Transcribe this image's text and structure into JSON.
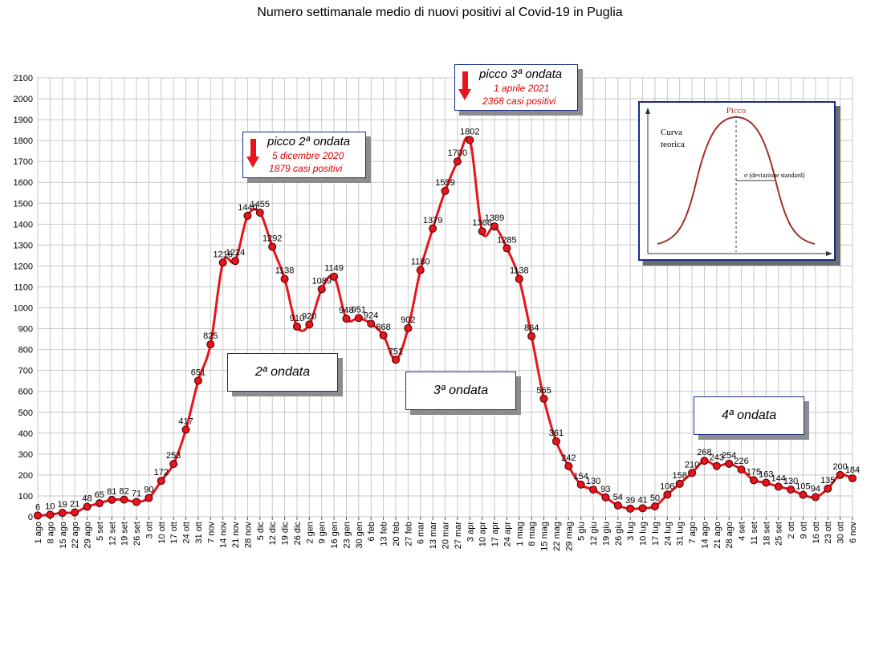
{
  "chart_data": {
    "type": "line",
    "title": "Numero settimanale medio di nuovi positivi al Covid-19 in Puglia",
    "ylim": [
      0,
      2100
    ],
    "yticks": [
      0,
      100,
      200,
      300,
      400,
      500,
      600,
      700,
      800,
      900,
      1000,
      1100,
      1200,
      1300,
      1400,
      1500,
      1600,
      1700,
      1800,
      1900,
      2000,
      2100
    ],
    "grid": true,
    "x": [
      "1 ago",
      "8 ago",
      "15 ago",
      "22 ago",
      "29 ago",
      "5 set",
      "12 set",
      "19 set",
      "26 set",
      "3 ott",
      "10 ott",
      "17 ott",
      "24 ott",
      "31 ott",
      "7 nov",
      "14 nov",
      "21 nov",
      "28 nov",
      "5 dic",
      "12 dic",
      "19 dic",
      "26 dic",
      "2 gen",
      "9 gen",
      "16 gen",
      "23 gen",
      "30 gen",
      "6 feb",
      "13 feb",
      "20 feb",
      "27 feb",
      "6 mar",
      "13 mar",
      "20 mar",
      "27 mar",
      "3 apr",
      "10 apr",
      "17 apr",
      "24 apr",
      "1 mag",
      "8 mag",
      "15 mag",
      "22 mag",
      "29 mag",
      "5 giu",
      "12 giu",
      "19 giu",
      "26 giu",
      "3 lug",
      "10 lug",
      "17 lug",
      "24 lug",
      "31 lug",
      "7 ago",
      "14 ago",
      "21 ago",
      "28 ago",
      "4 set",
      "11 set",
      "18 set",
      "25 set",
      "2 ott",
      "9 ott",
      "16 ott",
      "23 ott",
      "30 ott",
      "6 nov"
    ],
    "series": [
      {
        "values": [
          6,
          10,
          19,
          21,
          48,
          65,
          81,
          82,
          71,
          90,
          172,
          253,
          417,
          651,
          825,
          1216,
          1224,
          1440,
          1455,
          1292,
          1138,
          910,
          920,
          1089,
          1149,
          948,
          951,
          924,
          868,
          751,
          902,
          1180,
          1379,
          1559,
          1700,
          1802,
          1366,
          1389,
          1285,
          1138,
          864,
          565,
          361,
          242,
          154,
          130,
          93,
          54,
          39,
          41,
          50,
          106,
          158,
          210,
          268,
          243,
          254,
          226,
          175,
          163,
          144,
          130,
          105,
          94,
          135,
          200,
          184
        ],
        "labels": [
          "6",
          "10",
          "19",
          "21",
          "48",
          "65",
          "81",
          "82",
          "71",
          "90",
          "172",
          "253",
          "417",
          "651",
          "825",
          "1216",
          "1224",
          "1440",
          "1455",
          "1292",
          "1138",
          "910",
          "920",
          "1089",
          "1149",
          "948",
          "951",
          "924",
          "868",
          "751",
          "902",
          "1180",
          "1379",
          "1559",
          "1700",
          "1802",
          "1366",
          "1389",
          "1285",
          "1138",
          "864",
          "565",
          "361",
          "242",
          "154",
          "130",
          "93",
          "54",
          "39",
          "41",
          "50",
          "106",
          "158",
          "210",
          "268",
          "243",
          "254",
          "226",
          "175",
          "163",
          "144",
          "130",
          "105",
          "94",
          "135",
          "200",
          "184"
        ]
      }
    ],
    "annotations": {
      "wave2": "2ª ondata",
      "wave3": "3ª ondata",
      "wave4": "4ª ondata",
      "peak2": {
        "title": "picco 2ª ondata",
        "date": "5 dicembre 2020",
        "cases": "1879 casi positivi"
      },
      "peak3": {
        "title": "picco 3ª ondata",
        "date": "1 aprile 2021",
        "cases": "2368 casi positivi"
      }
    },
    "inset": {
      "peak_label": "Picco",
      "curve_label_1": "Curva",
      "curve_label_2": "teorica",
      "sigma_label": "σ (deviazione standard)"
    },
    "colors": {
      "line": "#e8141c",
      "marker": "#e8141c",
      "grid": "#c8c8c8",
      "accent": "#e00000",
      "inset_curve": "#a0302a"
    }
  }
}
